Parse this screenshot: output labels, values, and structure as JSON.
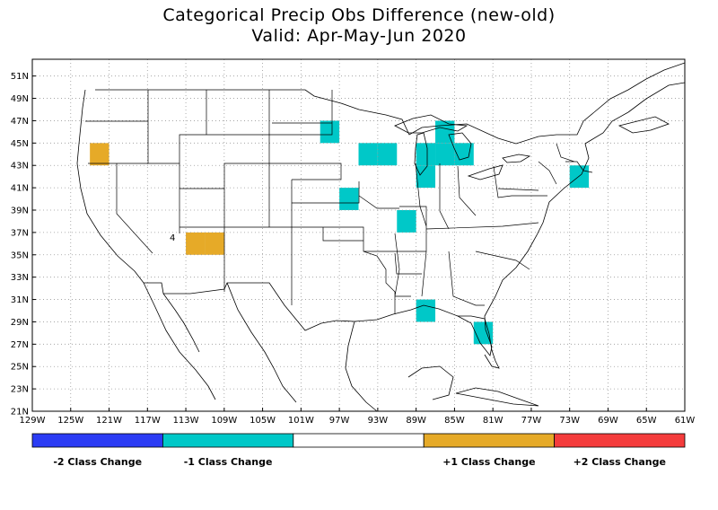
{
  "title": "Categorical Precip Obs Difference (new-old)",
  "subtitle": "Valid: Apr-May-Jun 2020",
  "lat_labels": [
    "51N",
    "49N",
    "47N",
    "45N",
    "43N",
    "41N",
    "39N",
    "37N",
    "35N",
    "33N",
    "31N",
    "29N",
    "27N",
    "25N",
    "23N",
    "21N"
  ],
  "lon_labels": [
    "129W",
    "125W",
    "121W",
    "117W",
    "113W",
    "109W",
    "105W",
    "101W",
    "97W",
    "93W",
    "89W",
    "85W",
    "81W",
    "77W",
    "73W",
    "69W",
    "65W",
    "61W"
  ],
  "map_marker": "4",
  "colors": {
    "minus2": "#2b3cf4",
    "minus1": "#00c8c8",
    "zero": "#ffffff",
    "plus1": "#e6aa28",
    "plus2": "#f43c3c"
  },
  "legend": [
    {
      "label": "-2 Class Change",
      "color": "#2b3cf4"
    },
    {
      "label": "-1 Class Change",
      "color": "#00c8c8"
    },
    {
      "label": "",
      "color": "#ffffff"
    },
    {
      "label": "+1 Class Change",
      "color": "#e6aa28"
    },
    {
      "label": "+2 Class Change",
      "color": "#f43c3c"
    }
  ],
  "cells": [
    {
      "lon": -122,
      "lat": 44,
      "class": 1
    },
    {
      "lon": -112,
      "lat": 36,
      "class": 1
    },
    {
      "lon": -110,
      "lat": 36,
      "class": 1
    },
    {
      "lon": -98,
      "lat": 46,
      "class": -1
    },
    {
      "lon": -96,
      "lat": 40,
      "class": -1
    },
    {
      "lon": -94,
      "lat": 44,
      "class": -1
    },
    {
      "lon": -92,
      "lat": 44,
      "class": -1
    },
    {
      "lon": -90,
      "lat": 38,
      "class": -1
    },
    {
      "lon": -88,
      "lat": 44,
      "class": -1
    },
    {
      "lon": -88,
      "lat": 42,
      "class": -1
    },
    {
      "lon": -88,
      "lat": 30,
      "class": -1
    },
    {
      "lon": -86,
      "lat": 46,
      "class": -1
    },
    {
      "lon": -86,
      "lat": 44,
      "class": -1
    },
    {
      "lon": -84,
      "lat": 44,
      "class": -1
    },
    {
      "lon": -82,
      "lat": 28,
      "class": -1
    },
    {
      "lon": -72,
      "lat": 42,
      "class": -1
    }
  ]
}
